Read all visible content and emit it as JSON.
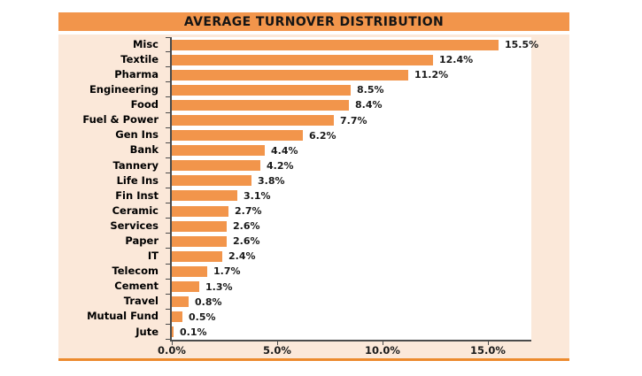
{
  "title": "AVERAGE TURNOVER DISTRIBUTION",
  "colors": {
    "bar_orange": "#F2954B",
    "title_bar_bg": "#F2954B",
    "chart_bg": "#FBE8D9",
    "plot_bg": "#FFFFFF",
    "axis_line": "#4A4A4A",
    "bottom_rule_orange": "#EC8A2D",
    "text": "#000000"
  },
  "chart_data": {
    "type": "bar",
    "orientation": "horizontal",
    "title": "AVERAGE TURNOVER DISTRIBUTION",
    "categories": [
      "Misc",
      "Textile",
      "Pharma",
      "Engineering",
      "Food",
      "Fuel & Power",
      "Gen Ins",
      "Bank",
      "Tannery",
      "Life Ins",
      "Fin Inst",
      "Ceramic",
      "Services",
      "Paper",
      "IT",
      "Telecom",
      "Cement",
      "Travel",
      "Mutual Fund",
      "Jute"
    ],
    "values": [
      15.5,
      12.4,
      11.2,
      8.5,
      8.4,
      7.7,
      6.2,
      4.4,
      4.2,
      3.8,
      3.1,
      2.7,
      2.6,
      2.6,
      2.4,
      1.7,
      1.3,
      0.8,
      0.5,
      0.1
    ],
    "data_labels": [
      "15.5%",
      "12.4%",
      "11.2%",
      "8.5%",
      "8.4%",
      "7.7%",
      "6.2%",
      "4.4%",
      "4.2%",
      "3.8%",
      "3.1%",
      "2.7%",
      "2.6%",
      "2.6%",
      "2.4%",
      "1.7%",
      "1.3%",
      "0.8%",
      "0.5%",
      "0.1%"
    ],
    "x_tick_values": [
      0,
      5,
      10,
      15
    ],
    "x_tick_labels": [
      "0.0%",
      "5.0%",
      "10.0%",
      "15.0%"
    ],
    "xlim": [
      0,
      17.06
    ],
    "grid": false,
    "legend": false,
    "data_labels_shown": true
  }
}
